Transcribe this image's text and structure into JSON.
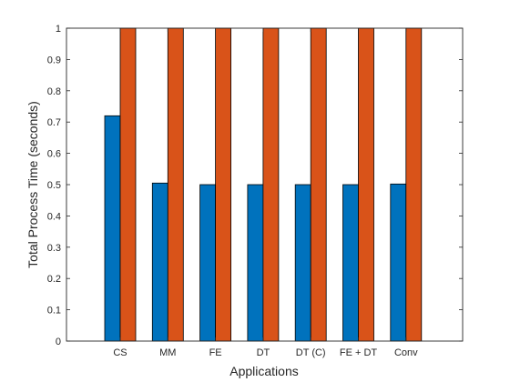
{
  "chart_data": {
    "type": "bar",
    "title": "",
    "xlabel": "Applications",
    "ylabel": "Total Process Time (seconds)",
    "categories": [
      "CS",
      "MM",
      "FE",
      "DT",
      "DT (C)",
      "FE + DT",
      "Conv"
    ],
    "series": [
      {
        "values": [
          0.72,
          0.505,
          0.5,
          0.5,
          0.5,
          0.5,
          0.502
        ],
        "color": "#0072BD"
      },
      {
        "values": [
          1,
          1,
          1,
          1,
          1,
          1,
          1
        ],
        "color": "#D95319"
      }
    ],
    "ylim": [
      0,
      1
    ],
    "yticks": [
      "0",
      "0.1",
      "0.2",
      "0.3",
      "0.4",
      "0.5",
      "0.6",
      "0.7",
      "0.8",
      "0.9",
      "1"
    ],
    "grid": false,
    "legend": "none"
  }
}
